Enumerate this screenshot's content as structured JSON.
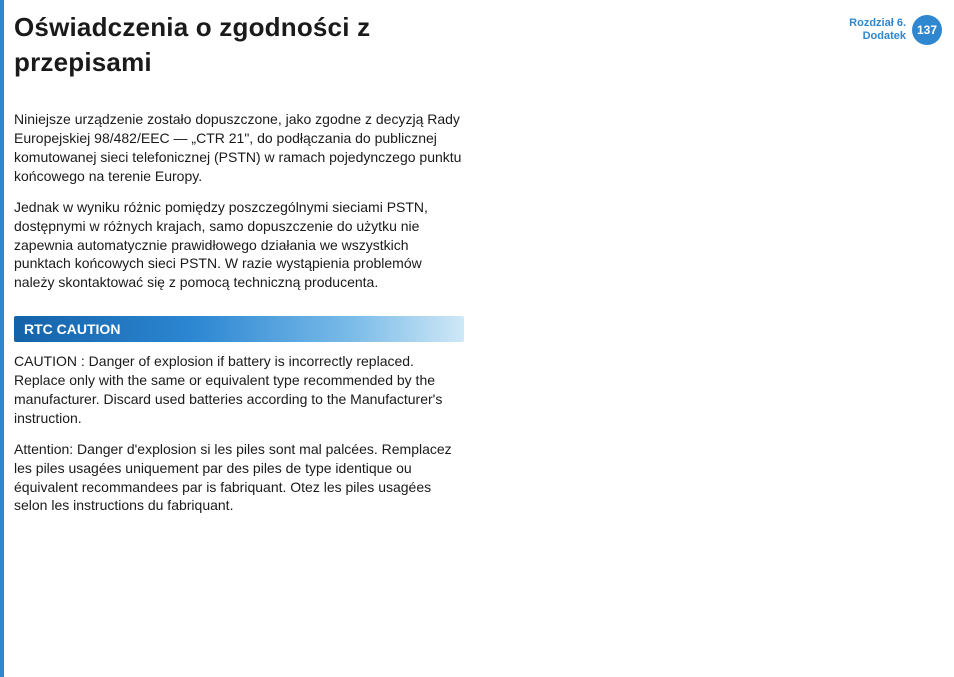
{
  "header": {
    "title": "Oświadczenia o zgodności z przepisami",
    "chapter_line1": "Rozdział 6.",
    "chapter_line2": "Dodatek",
    "page_number": "137"
  },
  "paragraphs": {
    "p1": "Niniejsze urządzenie zostało dopuszczone, jako zgodne z decyzją Rady Europejskiej 98/482/EEC — „CTR 21\", do podłączania do publicznej komutowanej sieci telefonicznej (PSTN) w ramach pojedynczego punktu końcowego na terenie Europy.",
    "p2": "Jednak w wyniku różnic pomiędzy poszczególnymi sieciami PSTN, dostępnymi w różnych krajach, samo dopuszczenie do użytku nie zapewnia automatycznie prawidłowego działania we wszystkich punktach końcowych sieci PSTN. W razie wystąpienia problemów należy skontaktować się z pomocą techniczną producenta."
  },
  "rtc": {
    "heading": "RTC CAUTION",
    "p1": "CAUTION : Danger of explosion if battery is incorrectly replaced. Replace only with the same or equivalent type recommended by the manufacturer. Discard used batteries according to the Manufacturer's instruction.",
    "p2": "Attention: Danger d'explosion si les piles sont mal palcées. Remplacez les piles usagées uniquement par des piles de type identique ou équivalent recommandees par is fabriquant. Otez les piles usagées selon les instructions du fabriquant."
  },
  "colors": {
    "accent": "#2f87d0",
    "text": "#1a1a1a",
    "background": "#ffffff"
  }
}
